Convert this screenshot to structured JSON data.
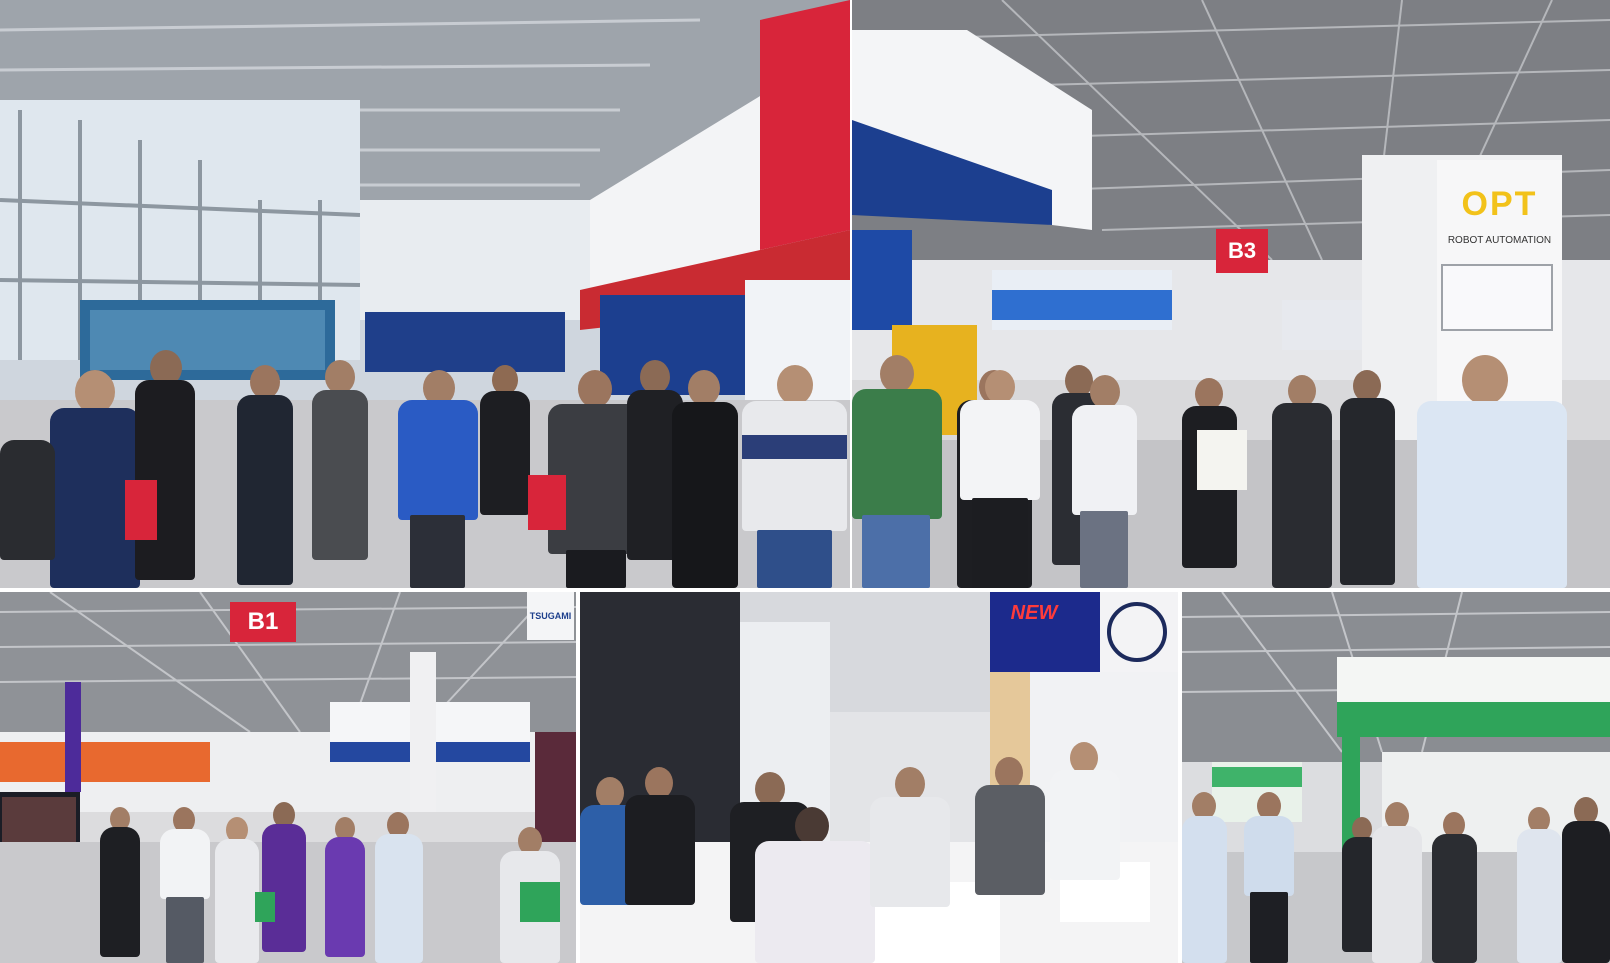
{
  "photos": [
    {
      "id": "hall-entrance-crowd"
    },
    {
      "id": "exhibition-aisle-b3",
      "signs": {
        "hall": "B3",
        "brand": "OPT",
        "brand_sub": "ROBOT AUTOMATION"
      }
    },
    {
      "id": "exhibition-hall-b1",
      "signs": {
        "hall": "B1",
        "brand": "TSUGAMI"
      }
    },
    {
      "id": "booth-negotiation",
      "signs": {
        "brand": "NEW"
      }
    },
    {
      "id": "green-booth-aisle"
    }
  ],
  "colors": {
    "sign_red": "#d8253a",
    "booth_blue": "#1c3f8f",
    "booth_green": "#2fa45a",
    "opt_yellow": "#f2c21a",
    "floor": "#c9c9cc",
    "ceiling": "#8a8d92"
  }
}
